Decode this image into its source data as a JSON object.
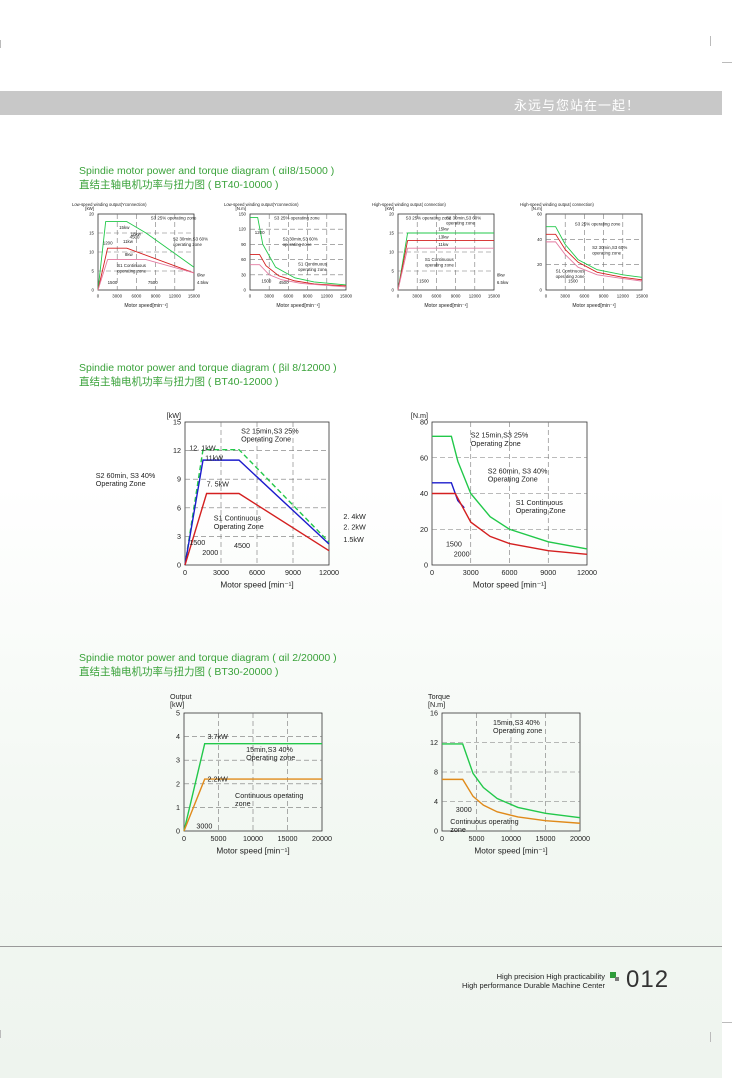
{
  "banner": {
    "text": "永远与您站在一起！"
  },
  "sections": [
    {
      "title_en": "Spindie motor power and torque diagram ( αiI8/15000 )",
      "title_cn": "直结主轴电机功率与扭力图 ( BT40-10000 )"
    },
    {
      "title_en": "Spindie motor power and torque diagram ( βil 8/12000 )",
      "title_cn": "直结主轴电机功率与扭力图 ( BT40-12000 )"
    },
    {
      "title_en": "Spindie motor power and torque diagram ( αil 2/20000 )",
      "title_cn": "直结主轴电机功率与扭力图 ( BT30-20000 )"
    }
  ],
  "colors": {
    "green": "#22c84a",
    "red": "#d42020",
    "blue": "#1c1ccc",
    "orange": "#e08a1a",
    "accent": "#3aa23a"
  },
  "chart_data": [
    {
      "type": "line",
      "title": "Low-speed winding output(Yconnection)",
      "ylabel": "[kW]",
      "xlabel": "Motor speed[min⁻¹]",
      "xlim": [
        0,
        15000
      ],
      "ylim": [
        0,
        20
      ],
      "xticks": [
        "0",
        "3000",
        "6000",
        "9000",
        "12000",
        "15000"
      ],
      "yticks": [
        "0",
        "5",
        "10",
        "15",
        "20"
      ],
      "labels": [
        "15kw",
        "18kw",
        "11kw",
        "4500",
        "1200",
        "8kw",
        "S3 25% operating zone",
        "S2 30min,S3 60% operating zone",
        "S1 Continuous operating zone",
        "1500",
        "7500",
        "6kw",
        "4.5kw"
      ],
      "series": [
        {
          "color": "green",
          "x": [
            0,
            1200,
            4500,
            7500,
            15000
          ],
          "y": [
            0,
            18,
            18,
            15,
            6
          ]
        },
        {
          "color": "red",
          "x": [
            0,
            1500,
            4500,
            15000
          ],
          "y": [
            0,
            11,
            11,
            4.5
          ]
        },
        {
          "color": "pink",
          "x": [
            0,
            1500,
            7500,
            15000
          ],
          "y": [
            0,
            8,
            8,
            4.5
          ]
        }
      ]
    },
    {
      "type": "line",
      "title": "Low-speed winding output(Yconnection)",
      "ylabel": "[N.m]",
      "xlabel": "Motor speed[min⁻¹]",
      "xlim": [
        0,
        15000
      ],
      "ylim": [
        0,
        150
      ],
      "xticks": [
        "0",
        "3000",
        "6000",
        "9000",
        "12000",
        "15000"
      ],
      "yticks": [
        "0",
        "30",
        "60",
        "90",
        "120",
        "150"
      ],
      "labels": [
        "S3 25% operating zone",
        "S2 30min,S3 60% operating zone",
        "S1 Continuous operating zone",
        "1500",
        "4500",
        "1200"
      ],
      "series": [
        {
          "color": "green",
          "x": [
            0,
            1200,
            2000,
            4000,
            7000,
            10000,
            15000
          ],
          "y": [
            143,
            143,
            90,
            45,
            24,
            16,
            10
          ]
        },
        {
          "color": "red",
          "x": [
            0,
            1500,
            2500,
            4500,
            7000,
            10000,
            15000
          ],
          "y": [
            70,
            70,
            48,
            28,
            18,
            12,
            8
          ]
        },
        {
          "color": "pink",
          "x": [
            0,
            1500,
            3000,
            5000,
            8000,
            12000,
            15000
          ],
          "y": [
            50,
            50,
            30,
            20,
            13,
            9,
            6
          ]
        }
      ]
    },
    {
      "type": "line",
      "title": "High-speed winding output( connection)",
      "ylabel": "[kW]",
      "xlabel": "Motor speed[min⁻¹]",
      "xlim": [
        0,
        15000
      ],
      "ylim": [
        0,
        20
      ],
      "xticks": [
        "0",
        "3000",
        "6000",
        "9000",
        "12000",
        "15000"
      ],
      "yticks": [
        "0",
        "5",
        "10",
        "15",
        "20"
      ],
      "labels": [
        "S3 25% operating zone",
        "S2 30min,S3 60% operating zone",
        "15kw",
        "13kw",
        "11kw",
        "S1 Continuous operating zone",
        "1500",
        "8kw",
        "6.5kw"
      ],
      "series": [
        {
          "color": "green",
          "x": [
            0,
            1500,
            15000
          ],
          "y": [
            0,
            15,
            15
          ]
        },
        {
          "color": "red",
          "x": [
            0,
            1500,
            15000
          ],
          "y": [
            0,
            13,
            13
          ]
        },
        {
          "color": "pink",
          "x": [
            0,
            1500,
            15000
          ],
          "y": [
            0,
            11,
            11
          ]
        }
      ]
    },
    {
      "type": "line",
      "title": "High-speed winding output( connection)",
      "ylabel": "[N.m]",
      "xlabel": "Motor speed[min⁻¹]",
      "xlim": [
        0,
        15000
      ],
      "ylim": [
        0,
        60
      ],
      "xticks": [
        "0",
        "3000",
        "6000",
        "9000",
        "12000",
        "15000"
      ],
      "yticks": [
        "0",
        "20",
        "40",
        "60"
      ],
      "labels": [
        "S3 25% operating zone",
        "S2 30min,S3 60% operating zone",
        "S1 Continuous operating zone",
        "1500"
      ],
      "series": [
        {
          "color": "green",
          "x": [
            0,
            1500,
            3000,
            5000,
            8000,
            12000,
            15000
          ],
          "y": [
            50,
            50,
            36,
            24,
            16,
            12,
            10
          ]
        },
        {
          "color": "red",
          "x": [
            0,
            1500,
            3000,
            5000,
            8000,
            12000,
            15000
          ],
          "y": [
            44,
            44,
            32,
            22,
            14,
            10,
            8
          ]
        },
        {
          "color": "pink",
          "x": [
            0,
            1500,
            3000,
            5000,
            8000,
            12000,
            15000
          ],
          "y": [
            38,
            38,
            28,
            18,
            12,
            9,
            7
          ]
        }
      ]
    },
    {
      "type": "line",
      "ylabel": "[kW]",
      "xlabel": "Motor speed [min⁻¹]",
      "xlim": [
        0,
        12000
      ],
      "ylim": [
        0,
        15
      ],
      "xticks": [
        "0",
        "3000",
        "6000",
        "9000",
        "12000"
      ],
      "yticks": [
        "0",
        "3",
        "6",
        "9",
        "12",
        "15"
      ],
      "labels": [
        "12. 1kW",
        "11kW",
        "7. 5kW",
        "S2 15min,S3 25% Operating Zone",
        "S2 60min, S3 40% Operating Zone",
        "S1 Continuous Operating Zone",
        "1500",
        "2000",
        "4500",
        "2. 4kW",
        "2. 2kW",
        "1.5kW"
      ],
      "series": [
        {
          "color": "green",
          "x": [
            0,
            1500,
            4500,
            12000
          ],
          "y": [
            0,
            12.1,
            12.1,
            2.4
          ]
        },
        {
          "color": "blue",
          "x": [
            0,
            1500,
            4500,
            12000
          ],
          "y": [
            0,
            11,
            11,
            2.2
          ]
        },
        {
          "color": "red",
          "x": [
            0,
            1800,
            4500,
            12000
          ],
          "y": [
            0,
            7.5,
            7.5,
            1.5
          ]
        }
      ]
    },
    {
      "type": "line",
      "ylabel": "[N.m]",
      "xlabel": "Motor speed [min⁻¹]",
      "xlim": [
        0,
        12000
      ],
      "ylim": [
        0,
        80
      ],
      "xticks": [
        "0",
        "3000",
        "6000",
        "9000",
        "12000"
      ],
      "yticks": [
        "0",
        "20",
        "40",
        "60",
        "80"
      ],
      "labels": [
        "S2 15min,S3 25% Operating Zone",
        "S2 60min, S3 40% Operating Zone",
        "S1 Continuous Operating Zone",
        "1500",
        "2000"
      ],
      "series": [
        {
          "color": "green",
          "x": [
            0,
            1500,
            2000,
            3000,
            4500,
            6000,
            9000,
            12000
          ],
          "y": [
            72,
            72,
            58,
            40,
            27,
            20,
            13,
            9
          ]
        },
        {
          "color": "blue",
          "x": [
            0,
            1500,
            2000,
            2500
          ],
          "y": [
            46,
            46,
            36,
            32
          ]
        },
        {
          "color": "red",
          "x": [
            0,
            1800,
            3000,
            4500,
            6000,
            9000,
            12000
          ],
          "y": [
            40,
            40,
            24,
            16,
            12,
            8,
            6
          ]
        }
      ]
    },
    {
      "type": "line",
      "ylabel": "Output [kW]",
      "xlabel": "Motor speed [min⁻¹]",
      "xlim": [
        0,
        20000
      ],
      "ylim": [
        0,
        5
      ],
      "xticks": [
        "0",
        "5000",
        "10000",
        "15000",
        "20000"
      ],
      "yticks": [
        "0",
        "1",
        "2",
        "3",
        "4",
        "5"
      ],
      "labels": [
        "3.7kW",
        "2.2kW",
        "15min,S3 40% Operating zone",
        "Continuous operating zone",
        "3000"
      ],
      "series": [
        {
          "color": "green",
          "x": [
            0,
            3000,
            20000
          ],
          "y": [
            0,
            3.7,
            3.7
          ]
        },
        {
          "color": "orange",
          "x": [
            0,
            3000,
            20000
          ],
          "y": [
            0,
            2.2,
            2.2
          ]
        }
      ]
    },
    {
      "type": "line",
      "ylabel": "Torque [N.m]",
      "xlabel": "Motor speed [min⁻¹]",
      "xlim": [
        0,
        20000
      ],
      "ylim": [
        0,
        16
      ],
      "xticks": [
        "0",
        "5000",
        "10000",
        "15000",
        "20000"
      ],
      "yticks": [
        "0",
        "4",
        "8",
        "12",
        "16"
      ],
      "labels": [
        "15min,S3 40% Operating zone",
        "Continuous operating zone",
        "3000"
      ],
      "series": [
        {
          "color": "green",
          "x": [
            0,
            3000,
            4500,
            6000,
            8000,
            11000,
            15000,
            20000
          ],
          "y": [
            11.8,
            11.8,
            7.8,
            5.9,
            4.4,
            3.2,
            2.4,
            1.8
          ]
        },
        {
          "color": "orange",
          "x": [
            0,
            3000,
            4500,
            6000,
            8000,
            11000,
            15000,
            20000
          ],
          "y": [
            7,
            7,
            4.7,
            3.5,
            2.6,
            1.9,
            1.4,
            1.05
          ]
        }
      ]
    }
  ],
  "footer": {
    "line1": "High precision High practicability",
    "line2": "High performance Durable Machine Center",
    "page_number": "012"
  }
}
